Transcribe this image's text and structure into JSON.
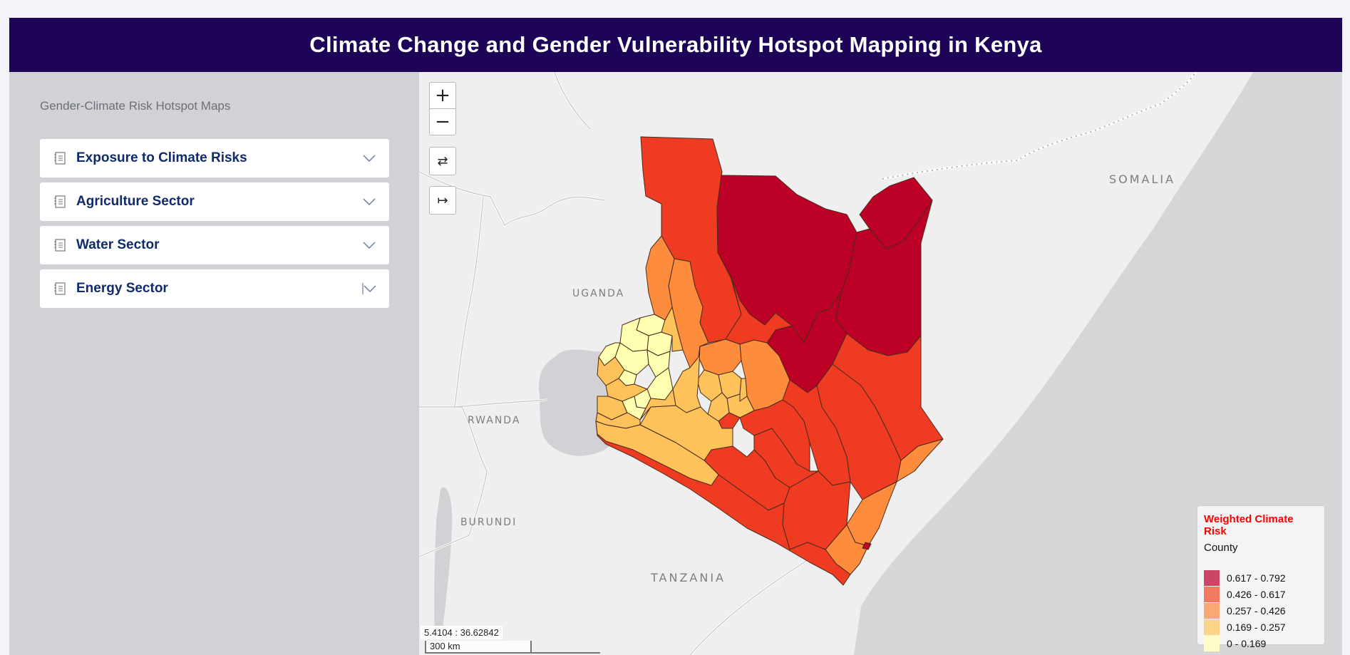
{
  "header": {
    "title": "Climate Change and Gender Vulnerability Hotspot Mapping in Kenya"
  },
  "sidebar": {
    "title": "Gender-Climate Risk Hotspot Maps",
    "items": [
      {
        "label": "Exposure to Climate Risks",
        "icon": "document-icon"
      },
      {
        "label": "Agriculture Sector",
        "icon": "document-icon"
      },
      {
        "label": "Water Sector",
        "icon": "document-icon"
      },
      {
        "label": "Energy Sector",
        "icon": "document-icon"
      }
    ]
  },
  "map": {
    "controls": {
      "zoom_in": "+",
      "zoom_out": "−",
      "swap": "⇄",
      "extent": "↦"
    },
    "labels": {
      "uganda": "UGANDA",
      "rwanda": "RWANDA",
      "burundi": "BURUNDI",
      "tanzania": "TANZANIA",
      "somalia": "SOMALIA"
    },
    "coordinates": "5.4104 : 36.62842",
    "scale": "300 km",
    "legend": {
      "title": "Weighted Climate Risk",
      "subtitle": "County",
      "classes": [
        {
          "range": "0.617 - 0.792",
          "color": "#cc4466"
        },
        {
          "range": "0.426 - 0.617",
          "color": "#f07a5e"
        },
        {
          "range": "0.257 - 0.426",
          "color": "#f9a872"
        },
        {
          "range": "0.169 - 0.257",
          "color": "#fbd48a"
        },
        {
          "range": "0 - 0.169",
          "color": "#fefcc7"
        }
      ]
    },
    "fill_colors": {
      "very_high": "#bd0026",
      "high": "#f03b20",
      "medium": "#fd8d3c",
      "low": "#fec25b",
      "very_low": "#ffffb2"
    }
  }
}
